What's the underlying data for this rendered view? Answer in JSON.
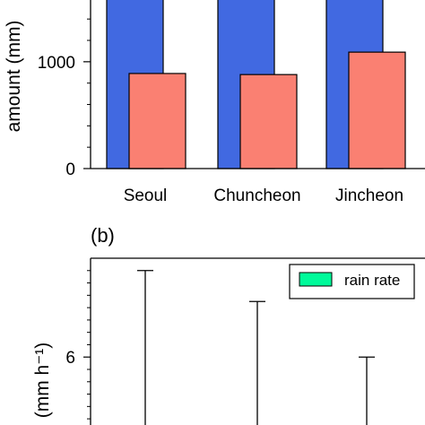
{
  "chart_data": [
    {
      "type": "bar",
      "panel": "",
      "categories": [
        "Seoul",
        "Chuncheon",
        "Jincheon"
      ],
      "series": [
        {
          "values": [
            2000,
            2000,
            2000
          ],
          "color": "#4169E1"
        },
        {
          "values": [
            890,
            880,
            1090
          ],
          "color": "#FA8072"
        }
      ],
      "ylabel": "amount (mm)",
      "yticks": [
        0,
        1000
      ],
      "ylim": [
        0,
        1620
      ],
      "note": "top of panel cropped; blue bars extend beyond visible range"
    },
    {
      "type": "bar",
      "panel": "(b)",
      "legend": {
        "label": "rain rate",
        "color": "#00FA9A",
        "position": "top-right"
      },
      "error_bar_tops": [
        7.4,
        6.9,
        6.0
      ],
      "ylabel": "(mm h⁻¹)",
      "yticks": [
        6
      ],
      "ylim": [
        4.9,
        7.6
      ],
      "note": "bottom of panel cropped"
    }
  ]
}
